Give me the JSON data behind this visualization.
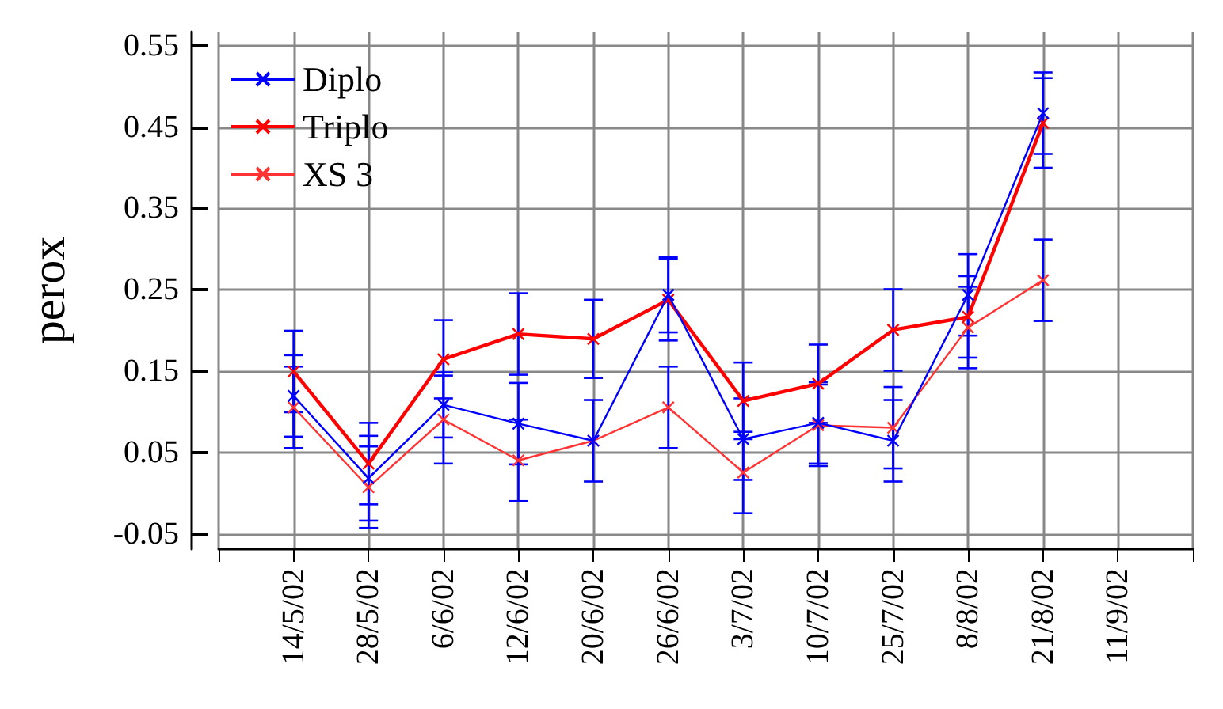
{
  "chart_data": {
    "type": "line",
    "ylabel": "perox",
    "categories": [
      null,
      "14/5/02",
      "28/5/02",
      "6/6/02",
      "12/6/02",
      "20/6/02",
      "26/6/02",
      "3/7/02",
      "10/7/02",
      "25/7/02",
      "8/8/02",
      "21/8/02",
      "11/9/02",
      null
    ],
    "series": [
      {
        "name": "Diplo",
        "color": "#0000ff",
        "values": [
          null,
          0.12,
          0.019,
          0.109,
          0.086,
          0.065,
          0.244,
          0.067,
          0.087,
          0.065,
          0.244,
          0.467,
          null,
          null
        ],
        "errors": [
          null,
          0.05,
          0.052,
          0.04,
          0.05,
          0.05,
          0.046,
          0.05,
          0.05,
          0.05,
          0.05,
          0.05,
          null,
          null
        ]
      },
      {
        "name": "Triplo",
        "color": "#ff0000",
        "values": [
          null,
          0.15,
          0.037,
          0.165,
          0.196,
          0.19,
          0.238,
          0.114,
          0.135,
          0.201,
          0.217,
          0.455,
          null,
          null
        ],
        "errors": [
          null,
          0.05,
          0.05,
          0.048,
          0.05,
          0.048,
          0.05,
          0.047,
          0.048,
          0.05,
          0.05,
          0.055,
          null,
          null
        ]
      },
      {
        "name": "XS 3",
        "color": "#ff3333",
        "values": [
          null,
          0.106,
          0.008,
          0.091,
          0.041,
          0.065,
          0.106,
          0.026,
          0.084,
          0.081,
          0.204,
          0.262,
          null,
          null
        ],
        "errors": [
          null,
          0.05,
          0.05,
          0.054,
          0.05,
          null,
          0.05,
          0.05,
          0.05,
          0.05,
          0.05,
          0.05,
          null,
          null
        ]
      }
    ],
    "ylim": [
      -0.068,
      0.567
    ],
    "yticks": [
      -0.05,
      0.05,
      0.15,
      0.25,
      0.35,
      0.45,
      0.55
    ],
    "grid": true,
    "legend": "top left",
    "marker": "cross",
    "line_style": "solid"
  }
}
